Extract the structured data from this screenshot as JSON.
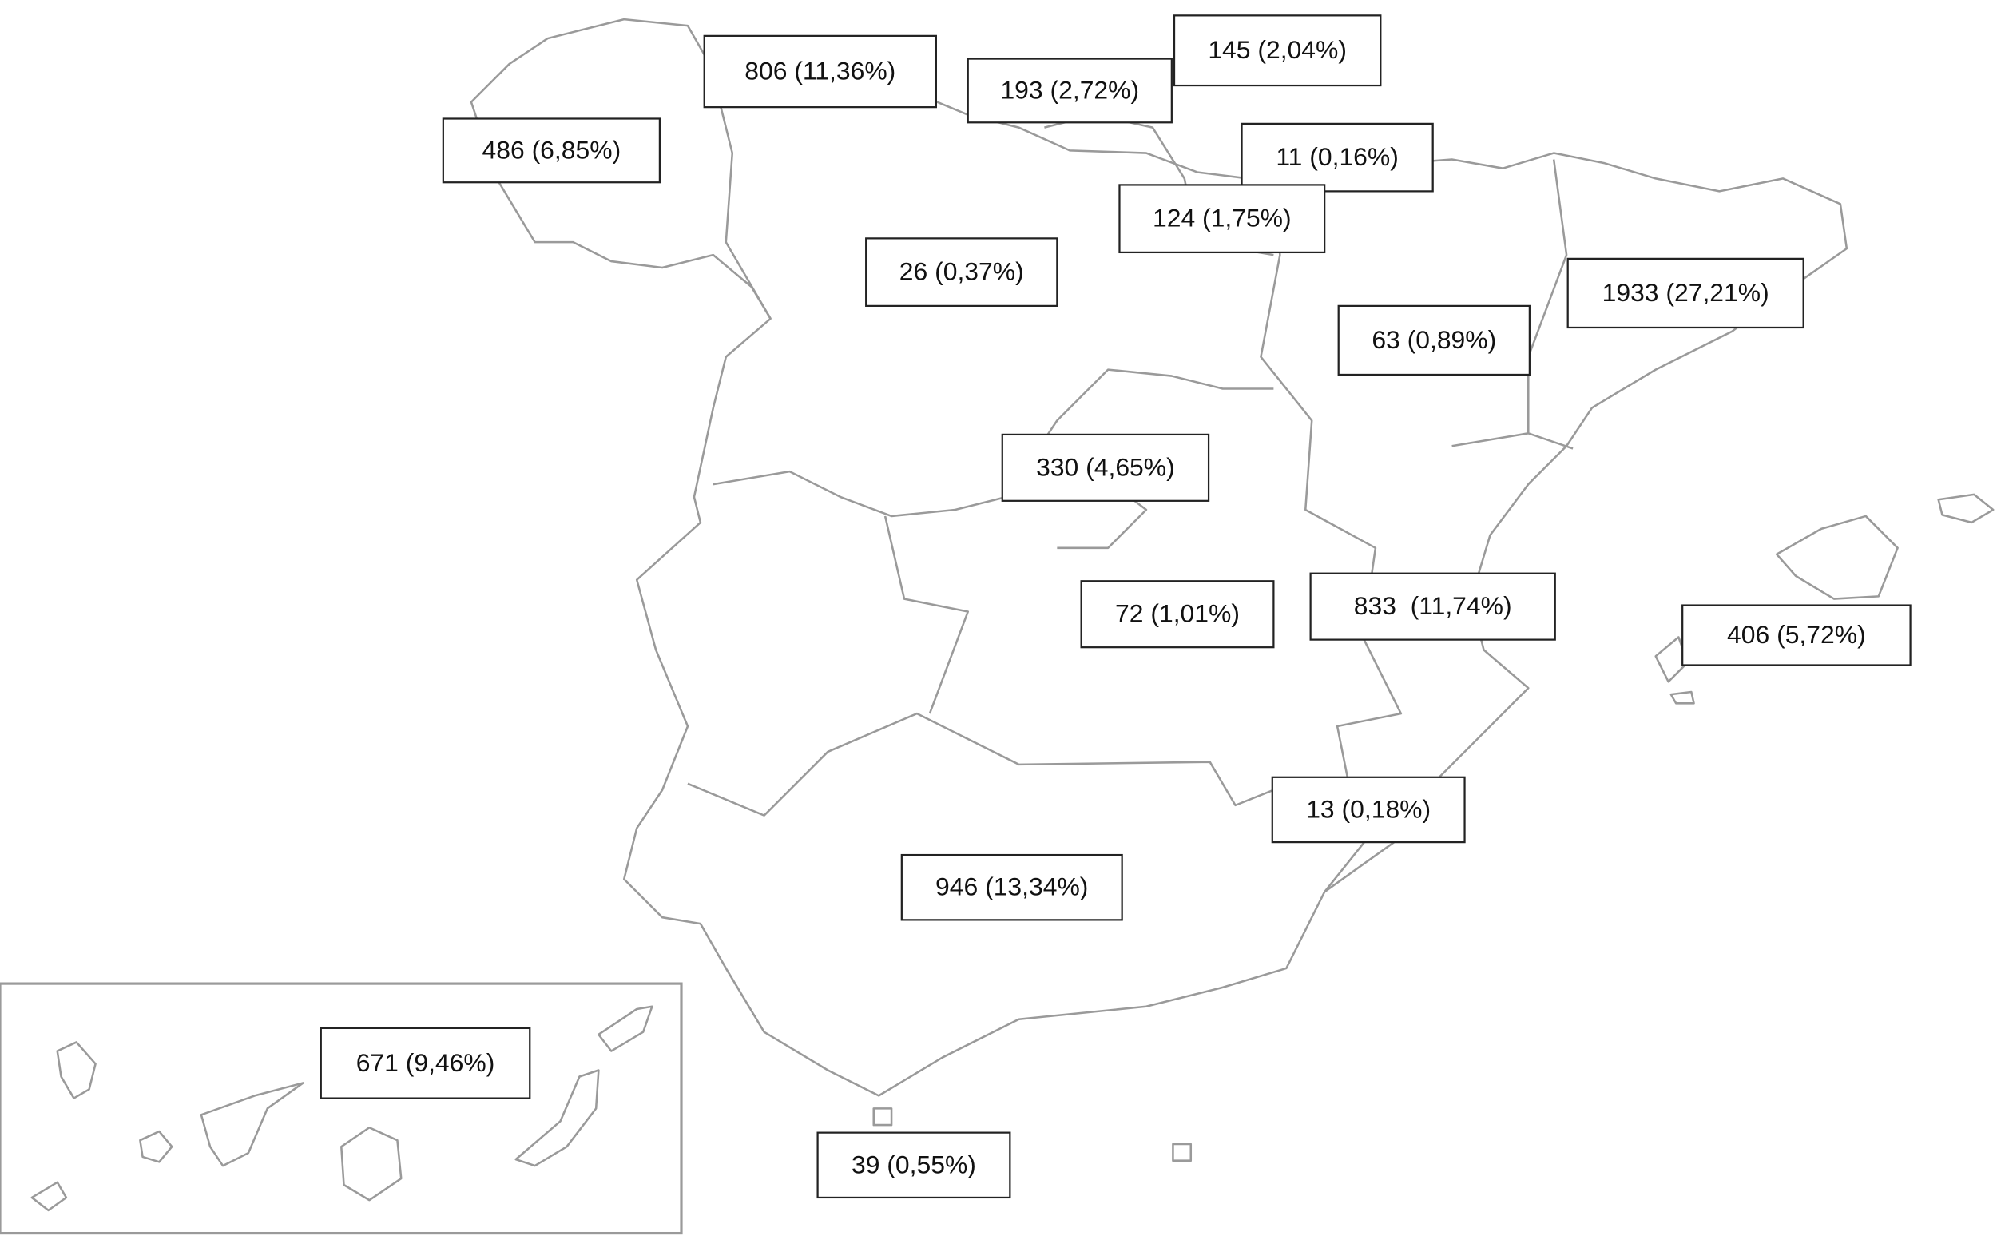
{
  "map": {
    "labels": [
      "806 (11,36%)",
      "193 (2,72%)",
      "145 (2,04%)",
      "486 (6,85%)",
      "11 (0,16%)",
      "124 (1,75%)",
      "26 (0,37%)",
      "1933 (27,21%)",
      "63 (0,89%)",
      "330 (4,65%)",
      "72 (1,01%)",
      "833  (11,74%)",
      "406 (5,72%)",
      "13 (0,18%)",
      "946 (13,34%)",
      "671 (9,46%)",
      "39 (0,55%)"
    ]
  }
}
